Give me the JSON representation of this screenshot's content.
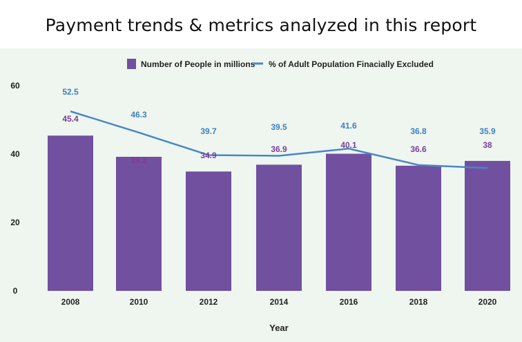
{
  "chart_data": {
    "type": "bar",
    "title": "Payment trends & metrics analyzed in this report",
    "categories": [
      "2008",
      "2010",
      "2012",
      "2014",
      "2016",
      "2018",
      "2020"
    ],
    "series": [
      {
        "name": "Number of People in millions",
        "kind": "bar",
        "color": "#7150a0",
        "values": [
          45.4,
          39.2,
          34.9,
          36.9,
          40.1,
          36.6,
          38
        ]
      },
      {
        "name": "% of Adult Population Finacially Excluded",
        "kind": "line",
        "color": "#4a86c5",
        "values": [
          52.5,
          46.3,
          39.7,
          39.5,
          41.6,
          36.8,
          35.9
        ]
      }
    ],
    "xlabel": "Year",
    "ylabel": "",
    "ylim": [
      0,
      60
    ],
    "yticks": [
      "0",
      "20",
      "40",
      "60"
    ],
    "legend": "top-center"
  }
}
